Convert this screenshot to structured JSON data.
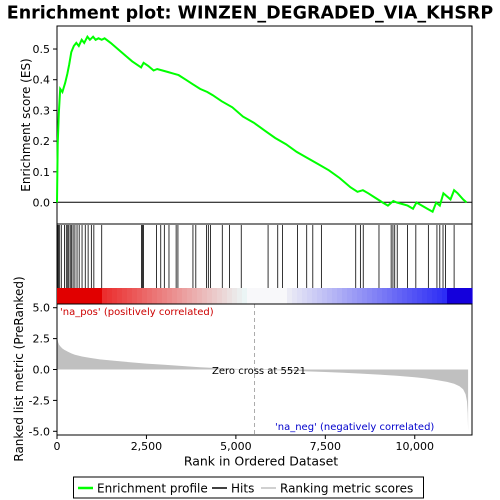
{
  "title": "Enrichment plot: WINZEN_DEGRADED_VIA_KHSRP",
  "colors": {
    "enrichment_line": "#00ff00",
    "hit": "#000000",
    "pos_label": "#cc0000",
    "neg_label": "#0000cc",
    "metric_fill": "#c0c0c0",
    "zero_cross_line": "#aaaaaa"
  },
  "legend": {
    "items": [
      {
        "label": "Enrichment profile",
        "color": "#00ff00",
        "icon": "green-line"
      },
      {
        "label": "Hits",
        "color": "#000000",
        "icon": "black-line"
      },
      {
        "label": "Ranking metric scores",
        "color": "#c0c0c0",
        "icon": "gray-line"
      }
    ]
  },
  "annotations": {
    "pos": "'na_pos' (positively correlated)",
    "neg": "'na_neg' (negatively correlated)",
    "zero_cross": "Zero cross at 5521"
  },
  "chart_data": [
    {
      "type": "line",
      "panel": "enrichment",
      "ylabel": "Enrichment score (ES)",
      "xlim": [
        0,
        11600
      ],
      "ylim": [
        -0.07,
        0.575
      ],
      "yticks": [
        0.0,
        0.1,
        0.2,
        0.3,
        0.4,
        0.5
      ],
      "ytick_labels": [
        "0.0",
        "0.1",
        "0.2",
        "0.3",
        "0.4",
        "0.5"
      ],
      "series": [
        {
          "x": [
            0,
            20,
            50,
            90,
            150,
            230,
            290,
            340,
            400,
            470,
            540,
            610,
            690,
            760,
            850,
            920,
            1010,
            1080,
            1160,
            1250,
            1330,
            1500,
            1800,
            2100,
            2350,
            2420,
            2550,
            2700,
            2800,
            2950,
            3100,
            3250,
            3400,
            3600,
            3800,
            4000,
            4200,
            4350,
            4600,
            4900,
            5200,
            5500,
            5800,
            6100,
            6400,
            6700,
            7000,
            7300,
            7600,
            7900,
            8200,
            8400,
            8550,
            8700,
            8900,
            9100,
            9250,
            9400,
            9500,
            9650,
            9800,
            9950,
            10050,
            10200,
            10350,
            10500,
            10600,
            10700,
            10800,
            10900,
            11000,
            11100,
            11200,
            11350,
            11450
          ],
          "y": [
            0.0,
            0.19,
            0.29,
            0.37,
            0.36,
            0.39,
            0.42,
            0.45,
            0.49,
            0.51,
            0.52,
            0.51,
            0.53,
            0.52,
            0.54,
            0.53,
            0.54,
            0.53,
            0.535,
            0.53,
            0.535,
            0.52,
            0.49,
            0.46,
            0.44,
            0.455,
            0.445,
            0.43,
            0.435,
            0.43,
            0.425,
            0.42,
            0.415,
            0.4,
            0.385,
            0.37,
            0.36,
            0.35,
            0.33,
            0.31,
            0.28,
            0.26,
            0.235,
            0.21,
            0.19,
            0.165,
            0.145,
            0.125,
            0.105,
            0.08,
            0.05,
            0.035,
            0.04,
            0.03,
            0.015,
            0.0,
            -0.01,
            0.005,
            0.0,
            -0.005,
            -0.01,
            -0.02,
            0.0,
            -0.01,
            -0.02,
            -0.03,
            0.0,
            -0.01,
            0.03,
            0.02,
            0.01,
            0.04,
            0.03,
            0.01,
            0.0
          ]
        }
      ]
    },
    {
      "type": "hits",
      "panel": "hits",
      "hit_positions": [
        15,
        40,
        75,
        120,
        210,
        260,
        300,
        330,
        370,
        410,
        450,
        500,
        560,
        620,
        700,
        790,
        870,
        960,
        1030,
        1250,
        2360,
        2390,
        2420,
        2780,
        2900,
        3000,
        3130,
        3330,
        3380,
        3800,
        3880,
        4180,
        4230,
        4290,
        4620,
        4820,
        5150,
        5900,
        6170,
        6300,
        6720,
        6980,
        7150,
        7390,
        8350,
        8480,
        8560,
        9000,
        9340,
        9390,
        9440,
        9510,
        9800,
        10030,
        10380,
        10620,
        10700,
        10790,
        10860,
        11100
      ]
    },
    {
      "type": "area",
      "panel": "ranked-metric",
      "xlabel": "Rank in Ordered Dataset",
      "ylabel": "Ranked list metric (PreRanked)",
      "xlim": [
        0,
        11600
      ],
      "ylim": [
        -5.3,
        5.3
      ],
      "yticks": [
        -5.0,
        -2.5,
        0.0,
        2.5,
        5.0
      ],
      "ytick_labels": [
        "-5.0",
        "-2.5",
        "0.0",
        "2.5",
        "5.0"
      ],
      "xticks": [
        0,
        2500,
        5000,
        7500,
        10000
      ],
      "xtick_labels": [
        "0",
        "2,500",
        "5,000",
        "7,500",
        "10,000"
      ],
      "zero_cross": 5521,
      "x": [
        0,
        10,
        30,
        60,
        100,
        150,
        200,
        300,
        400,
        500,
        700,
        900,
        1200,
        1600,
        2000,
        2500,
        3000,
        3500,
        4000,
        4500,
        5000,
        5521,
        6000,
        6500,
        7000,
        7500,
        8000,
        8500,
        9000,
        9500,
        10000,
        10300,
        10600,
        10900,
        11100,
        11250,
        11350,
        11420,
        11460,
        11480,
        11490
      ],
      "y": [
        2.9,
        2.5,
        2.2,
        2.0,
        1.85,
        1.7,
        1.6,
        1.45,
        1.3,
        1.2,
        1.05,
        0.95,
        0.82,
        0.7,
        0.6,
        0.48,
        0.38,
        0.28,
        0.19,
        0.11,
        0.05,
        0.0,
        -0.05,
        -0.1,
        -0.15,
        -0.2,
        -0.26,
        -0.33,
        -0.41,
        -0.5,
        -0.62,
        -0.72,
        -0.85,
        -1.0,
        -1.15,
        -1.35,
        -1.6,
        -2.0,
        -2.6,
        -3.5,
        -5.0
      ]
    }
  ]
}
